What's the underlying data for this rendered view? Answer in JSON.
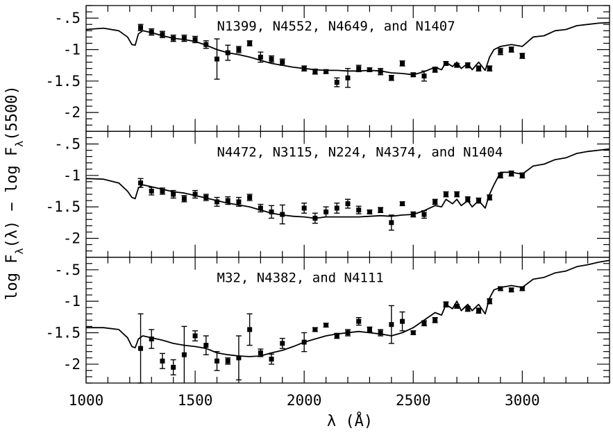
{
  "chart_data": {
    "type": "line",
    "xlabel": "λ (Å)",
    "ylabel": "log F_λ(λ) − log F_λ(5500)",
    "xlim": [
      1000,
      3400
    ],
    "x_ticks": [
      1000,
      1500,
      2000,
      2500,
      3000
    ],
    "ylim": [
      -2.3,
      -0.3
    ],
    "y_tick_labels": [
      "-.5",
      "-1",
      "-1.5",
      "-2"
    ],
    "y_tick_values": [
      -0.5,
      -1,
      -1.5,
      -2
    ],
    "grid": false,
    "panels": [
      {
        "label": "N1399, N4552, N4649, and N1407",
        "model_line": {
          "x": [
            1000,
            1080,
            1150,
            1190,
            1210,
            1225,
            1240,
            1260,
            1300,
            1350,
            1400,
            1450,
            1500,
            1550,
            1600,
            1650,
            1700,
            1750,
            1800,
            1850,
            1900,
            1950,
            2000,
            2050,
            2100,
            2150,
            2200,
            2250,
            2300,
            2350,
            2400,
            2450,
            2500,
            2550,
            2600,
            2630,
            2650,
            2680,
            2700,
            2720,
            2750,
            2770,
            2800,
            2830,
            2850,
            2870,
            2900,
            2950,
            3000,
            3050,
            3100,
            3150,
            3200,
            3250,
            3300,
            3350,
            3400
          ],
          "y": [
            -0.68,
            -0.66,
            -0.7,
            -0.8,
            -0.92,
            -0.93,
            -0.75,
            -0.7,
            -0.73,
            -0.78,
            -0.82,
            -0.84,
            -0.87,
            -0.93,
            -1.0,
            -1.05,
            -1.08,
            -1.12,
            -1.17,
            -1.22,
            -1.25,
            -1.28,
            -1.3,
            -1.32,
            -1.33,
            -1.33,
            -1.34,
            -1.34,
            -1.33,
            -1.34,
            -1.37,
            -1.38,
            -1.4,
            -1.35,
            -1.28,
            -1.32,
            -1.2,
            -1.27,
            -1.2,
            -1.3,
            -1.22,
            -1.32,
            -1.2,
            -1.33,
            -1.12,
            -1.0,
            -0.95,
            -0.92,
            -0.95,
            -0.8,
            -0.78,
            -0.7,
            -0.68,
            -0.62,
            -0.6,
            -0.58,
            -0.57
          ]
        },
        "points": [
          {
            "x": 1250,
            "y": -0.65,
            "err": 0.05
          },
          {
            "x": 1300,
            "y": -0.72,
            "err": 0.05
          },
          {
            "x": 1350,
            "y": -0.76,
            "err": 0.05
          },
          {
            "x": 1400,
            "y": -0.82,
            "err": 0.05
          },
          {
            "x": 1450,
            "y": -0.82,
            "err": 0.05
          },
          {
            "x": 1500,
            "y": -0.84,
            "err": 0.05
          },
          {
            "x": 1550,
            "y": -0.92,
            "err": 0.06
          },
          {
            "x": 1600,
            "y": -1.15,
            "err": 0.32
          },
          {
            "x": 1650,
            "y": -1.05,
            "err": 0.12
          },
          {
            "x": 1700,
            "y": -1.0,
            "err": 0.05
          },
          {
            "x": 1750,
            "y": -0.9,
            "err": 0.04
          },
          {
            "x": 1800,
            "y": -1.12,
            "err": 0.08
          },
          {
            "x": 1850,
            "y": -1.15,
            "err": 0.05
          },
          {
            "x": 1900,
            "y": -1.2,
            "err": 0.05
          },
          {
            "x": 2000,
            "y": -1.3,
            "err": 0.04
          },
          {
            "x": 2050,
            "y": -1.35,
            "err": 0.04
          },
          {
            "x": 2100,
            "y": -1.35,
            "err": 0.03
          },
          {
            "x": 2150,
            "y": -1.52,
            "err": 0.07
          },
          {
            "x": 2200,
            "y": -1.45,
            "err": 0.15
          },
          {
            "x": 2250,
            "y": -1.3,
            "err": 0.05
          },
          {
            "x": 2300,
            "y": -1.32,
            "err": 0.03
          },
          {
            "x": 2350,
            "y": -1.35,
            "err": 0.05
          },
          {
            "x": 2400,
            "y": -1.45,
            "err": 0.04
          },
          {
            "x": 2450,
            "y": -1.22,
            "err": 0.04
          },
          {
            "x": 2500,
            "y": -1.4,
            "err": 0.03
          },
          {
            "x": 2550,
            "y": -1.42,
            "err": 0.08
          },
          {
            "x": 2600,
            "y": -1.32,
            "err": 0.04
          },
          {
            "x": 2650,
            "y": -1.22,
            "err": 0.03
          },
          {
            "x": 2700,
            "y": -1.25,
            "err": 0.03
          },
          {
            "x": 2750,
            "y": -1.25,
            "err": 0.04
          },
          {
            "x": 2800,
            "y": -1.3,
            "err": 0.04
          },
          {
            "x": 2850,
            "y": -1.3,
            "err": 0.04
          },
          {
            "x": 2900,
            "y": -1.03,
            "err": 0.05
          },
          {
            "x": 2950,
            "y": -1.0,
            "err": 0.04
          },
          {
            "x": 3000,
            "y": -1.1,
            "err": 0.04
          }
        ]
      },
      {
        "label": "N4472, N3115, N224, N4374, and N1404",
        "model_line": {
          "x": [
            1000,
            1080,
            1150,
            1190,
            1210,
            1225,
            1240,
            1260,
            1300,
            1350,
            1400,
            1450,
            1500,
            1550,
            1600,
            1650,
            1700,
            1750,
            1800,
            1850,
            1900,
            1950,
            2000,
            2050,
            2100,
            2150,
            2200,
            2250,
            2300,
            2350,
            2400,
            2450,
            2500,
            2550,
            2600,
            2630,
            2650,
            2680,
            2700,
            2720,
            2750,
            2770,
            2800,
            2830,
            2850,
            2870,
            2900,
            2950,
            3000,
            3050,
            3100,
            3150,
            3200,
            3250,
            3300,
            3350,
            3400
          ],
          "y": [
            -1.05,
            -1.06,
            -1.12,
            -1.25,
            -1.35,
            -1.37,
            -1.2,
            -1.15,
            -1.18,
            -1.22,
            -1.26,
            -1.28,
            -1.32,
            -1.36,
            -1.4,
            -1.44,
            -1.47,
            -1.5,
            -1.55,
            -1.6,
            -1.63,
            -1.65,
            -1.66,
            -1.68,
            -1.66,
            -1.66,
            -1.66,
            -1.66,
            -1.65,
            -1.64,
            -1.65,
            -1.63,
            -1.62,
            -1.56,
            -1.48,
            -1.5,
            -1.38,
            -1.45,
            -1.38,
            -1.48,
            -1.4,
            -1.5,
            -1.4,
            -1.52,
            -1.3,
            -1.15,
            -0.95,
            -0.95,
            -0.98,
            -0.85,
            -0.82,
            -0.75,
            -0.72,
            -0.65,
            -0.62,
            -0.6,
            -0.58
          ]
        },
        "points": [
          {
            "x": 1250,
            "y": -1.12,
            "err": 0.07
          },
          {
            "x": 1300,
            "y": -1.25,
            "err": 0.06
          },
          {
            "x": 1350,
            "y": -1.25,
            "err": 0.05
          },
          {
            "x": 1400,
            "y": -1.3,
            "err": 0.06
          },
          {
            "x": 1450,
            "y": -1.37,
            "err": 0.05
          },
          {
            "x": 1500,
            "y": -1.3,
            "err": 0.06
          },
          {
            "x": 1550,
            "y": -1.35,
            "err": 0.05
          },
          {
            "x": 1600,
            "y": -1.42,
            "err": 0.07
          },
          {
            "x": 1650,
            "y": -1.4,
            "err": 0.06
          },
          {
            "x": 1700,
            "y": -1.42,
            "err": 0.07
          },
          {
            "x": 1750,
            "y": -1.35,
            "err": 0.05
          },
          {
            "x": 1800,
            "y": -1.52,
            "err": 0.06
          },
          {
            "x": 1850,
            "y": -1.58,
            "err": 0.1
          },
          {
            "x": 1900,
            "y": -1.62,
            "err": 0.15
          },
          {
            "x": 2000,
            "y": -1.52,
            "err": 0.08
          },
          {
            "x": 2050,
            "y": -1.68,
            "err": 0.08
          },
          {
            "x": 2100,
            "y": -1.58,
            "err": 0.08
          },
          {
            "x": 2150,
            "y": -1.52,
            "err": 0.08
          },
          {
            "x": 2200,
            "y": -1.45,
            "err": 0.07
          },
          {
            "x": 2250,
            "y": -1.55,
            "err": 0.06
          },
          {
            "x": 2300,
            "y": -1.58,
            "err": 0.03
          },
          {
            "x": 2350,
            "y": -1.55,
            "err": 0.04
          },
          {
            "x": 2400,
            "y": -1.75,
            "err": 0.12
          },
          {
            "x": 2450,
            "y": -1.45,
            "err": 0.03
          },
          {
            "x": 2500,
            "y": -1.62,
            "err": 0.04
          },
          {
            "x": 2550,
            "y": -1.62,
            "err": 0.06
          },
          {
            "x": 2600,
            "y": -1.42,
            "err": 0.04
          },
          {
            "x": 2650,
            "y": -1.3,
            "err": 0.04
          },
          {
            "x": 2700,
            "y": -1.3,
            "err": 0.04
          },
          {
            "x": 2750,
            "y": -1.38,
            "err": 0.04
          },
          {
            "x": 2800,
            "y": -1.4,
            "err": 0.04
          },
          {
            "x": 2850,
            "y": -1.35,
            "err": 0.04
          },
          {
            "x": 2900,
            "y": -1.0,
            "err": 0.04
          },
          {
            "x": 2950,
            "y": -0.97,
            "err": 0.04
          },
          {
            "x": 3000,
            "y": -1.0,
            "err": 0.04
          }
        ]
      },
      {
        "label": "M32, N4382, and N4111",
        "model_line": {
          "x": [
            1000,
            1080,
            1150,
            1190,
            1210,
            1225,
            1240,
            1260,
            1300,
            1350,
            1400,
            1450,
            1500,
            1550,
            1600,
            1650,
            1700,
            1750,
            1800,
            1850,
            1900,
            1950,
            2000,
            2050,
            2100,
            2150,
            2200,
            2250,
            2300,
            2350,
            2400,
            2450,
            2500,
            2550,
            2600,
            2630,
            2650,
            2680,
            2700,
            2720,
            2750,
            2770,
            2800,
            2830,
            2850,
            2870,
            2900,
            2950,
            3000,
            3050,
            3100,
            3150,
            3200,
            3250,
            3300,
            3350,
            3400
          ],
          "y": [
            -1.42,
            -1.42,
            -1.45,
            -1.58,
            -1.72,
            -1.74,
            -1.6,
            -1.55,
            -1.58,
            -1.62,
            -1.67,
            -1.7,
            -1.72,
            -1.75,
            -1.82,
            -1.85,
            -1.87,
            -1.88,
            -1.87,
            -1.82,
            -1.78,
            -1.72,
            -1.65,
            -1.6,
            -1.55,
            -1.52,
            -1.5,
            -1.48,
            -1.5,
            -1.52,
            -1.55,
            -1.5,
            -1.42,
            -1.3,
            -1.18,
            -1.22,
            -1.05,
            -1.12,
            -1.0,
            -1.15,
            -1.05,
            -1.15,
            -1.05,
            -1.2,
            -0.95,
            -0.82,
            -0.78,
            -0.75,
            -0.78,
            -0.65,
            -0.62,
            -0.55,
            -0.52,
            -0.45,
            -0.42,
            -0.38,
            -0.35
          ]
        },
        "points": [
          {
            "x": 1250,
            "y": -1.75,
            "err": 0.55
          },
          {
            "x": 1300,
            "y": -1.6,
            "err": 0.15
          },
          {
            "x": 1350,
            "y": -1.95,
            "err": 0.12
          },
          {
            "x": 1400,
            "y": -2.05,
            "err": 0.12
          },
          {
            "x": 1450,
            "y": -1.85,
            "err": 0.45
          },
          {
            "x": 1500,
            "y": -1.55,
            "err": 0.08
          },
          {
            "x": 1550,
            "y": -1.7,
            "err": 0.15
          },
          {
            "x": 1600,
            "y": -1.95,
            "err": 0.15
          },
          {
            "x": 1650,
            "y": -1.95,
            "err": 0.05
          },
          {
            "x": 1700,
            "y": -1.9,
            "err": 0.35
          },
          {
            "x": 1750,
            "y": -1.45,
            "err": 0.25
          },
          {
            "x": 1800,
            "y": -1.82,
            "err": 0.06
          },
          {
            "x": 1850,
            "y": -1.92,
            "err": 0.08
          },
          {
            "x": 1900,
            "y": -1.67,
            "err": 0.08
          },
          {
            "x": 2000,
            "y": -1.65,
            "err": 0.15
          },
          {
            "x": 2050,
            "y": -1.45,
            "err": 0.03
          },
          {
            "x": 2100,
            "y": -1.38,
            "err": 0.03
          },
          {
            "x": 2150,
            "y": -1.55,
            "err": 0.04
          },
          {
            "x": 2200,
            "y": -1.5,
            "err": 0.05
          },
          {
            "x": 2250,
            "y": -1.32,
            "err": 0.06
          },
          {
            "x": 2300,
            "y": -1.45,
            "err": 0.04
          },
          {
            "x": 2350,
            "y": -1.5,
            "err": 0.05
          },
          {
            "x": 2400,
            "y": -1.37,
            "err": 0.3
          },
          {
            "x": 2450,
            "y": -1.32,
            "err": 0.15
          },
          {
            "x": 2500,
            "y": -1.5,
            "err": 0.03
          },
          {
            "x": 2550,
            "y": -1.35,
            "err": 0.04
          },
          {
            "x": 2600,
            "y": -1.3,
            "err": 0.04
          },
          {
            "x": 2650,
            "y": -1.05,
            "err": 0.04
          },
          {
            "x": 2700,
            "y": -1.08,
            "err": 0.03
          },
          {
            "x": 2750,
            "y": -1.12,
            "err": 0.04
          },
          {
            "x": 2800,
            "y": -1.15,
            "err": 0.04
          },
          {
            "x": 2850,
            "y": -1.0,
            "err": 0.04
          },
          {
            "x": 2900,
            "y": -0.8,
            "err": 0.03
          },
          {
            "x": 2950,
            "y": -0.82,
            "err": 0.03
          },
          {
            "x": 3000,
            "y": -0.8,
            "err": 0.03
          }
        ]
      }
    ]
  }
}
